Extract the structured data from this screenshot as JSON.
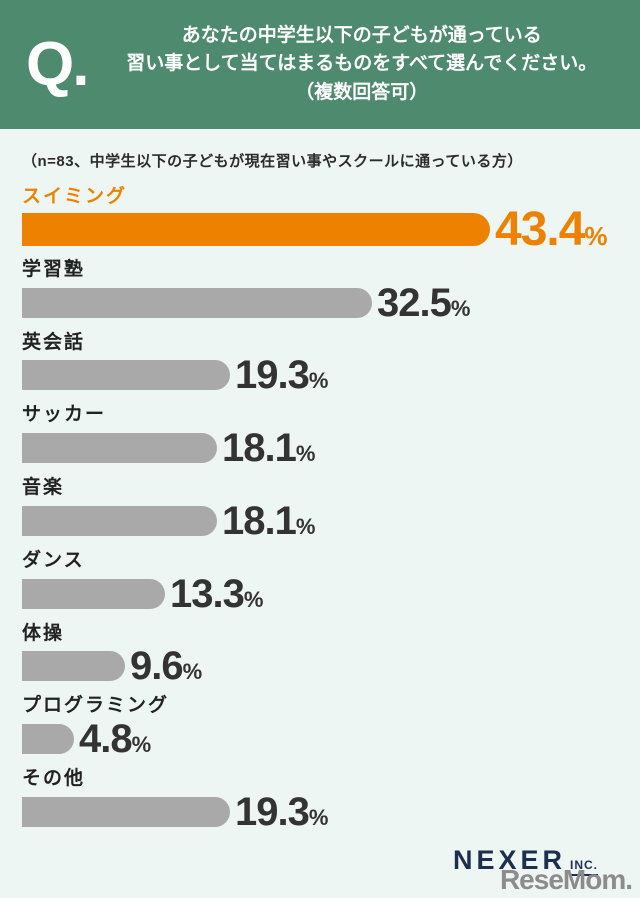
{
  "header": {
    "q_label": "Q.",
    "question_line1": "あなたの中学生以下の子どもが通っている",
    "question_line2": "習い事として当てはまるものをすべて選んでください。",
    "question_line3": "（複数回答可）"
  },
  "note": "（n=83、中学生以下の子どもが現在習い事やスクールに通っている方）",
  "chart_data": {
    "type": "bar",
    "orientation": "horizontal",
    "title": "あなたの中学生以下の子どもが通っている習い事として当てはまるものをすべて選んでください。（複数回答可）",
    "subtitle": "（n=83、中学生以下の子どもが現在習い事やスクールに通っている方）",
    "categories": [
      "スイミング",
      "学習塾",
      "英会話",
      "サッカー",
      "音楽",
      "ダンス",
      "体操",
      "プログラミング",
      "その他"
    ],
    "values": [
      43.4,
      32.5,
      19.3,
      18.1,
      18.1,
      13.3,
      9.6,
      4.8,
      19.3
    ],
    "unit": "%",
    "xlim": [
      0,
      50
    ],
    "grid": false,
    "legend": false,
    "highlight_index": 0,
    "highlight_color": "#ee8200",
    "bar_color": "#a9a9a9",
    "value_label_color": "#333333"
  },
  "footer": {
    "company_name": "NEXER",
    "company_suffix": "INC.",
    "media_logo": "ReseMom."
  },
  "colors": {
    "header_bg": "#4e8a6e",
    "page_bg": "#edf6f2",
    "accent_orange": "#ee8200",
    "bar_gray": "#a9a9a9",
    "logo_navy": "#1c2f4f",
    "logo_gray": "#8c8c8c"
  }
}
